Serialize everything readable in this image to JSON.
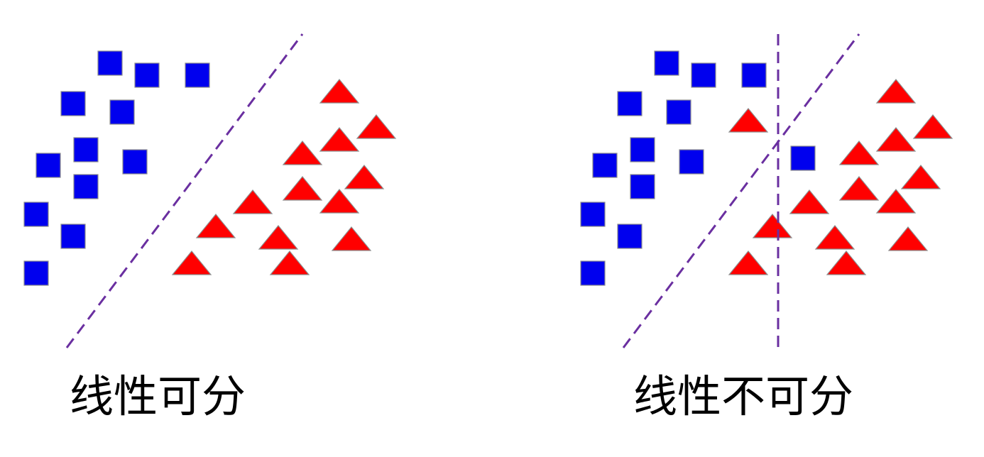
{
  "colors": {
    "class_a": "#0000ee",
    "class_b": "#ff0000",
    "mark_outline": "#8c8c8c",
    "boundary": "#6a2fa0",
    "background": "#ffffff"
  },
  "panels": [
    {
      "caption": "线性可分",
      "class_a_shape": "square",
      "class_b_shape": "triangle",
      "boundary_style": "dashed"
    },
    {
      "caption": "线性不可分",
      "class_a_shape": "square",
      "class_b_shape": "triangle",
      "boundary_style": "dashed"
    }
  ]
}
